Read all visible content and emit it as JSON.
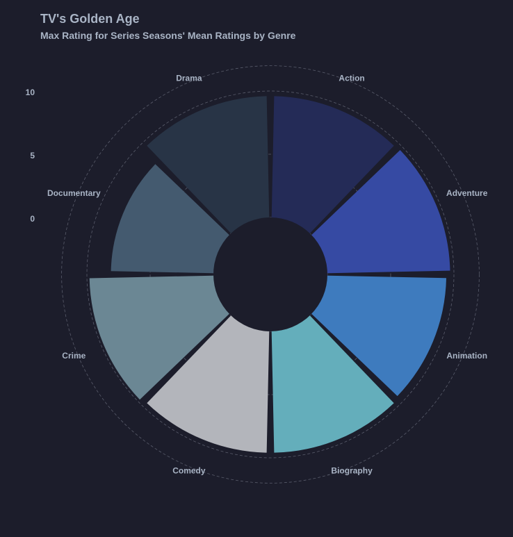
{
  "chart_data": {
    "type": "bar",
    "coordinate_system": "polar",
    "title": "TV's Golden Age",
    "subtitle": "Max Rating for Series Seasons' Mean Ratings by Genre",
    "categories": [
      "Action",
      "Adventure",
      "Animation",
      "Biography",
      "Comedy",
      "Crime",
      "Documentary",
      "Drama"
    ],
    "values": [
      9.6,
      9.7,
      9.4,
      9.6,
      9.6,
      9.8,
      8.1,
      9.6
    ],
    "colors": [
      "#242b57",
      "#364aa3",
      "#3e7bbe",
      "#64aebb",
      "#b3b5bb",
      "#6b8794",
      "#445a6f",
      "#283446"
    ],
    "radial_ticks": [
      0,
      5,
      10
    ],
    "radial_tick_labels": [
      "0",
      "5",
      "10"
    ],
    "ylim": [
      -4,
      12
    ],
    "grid": true
  },
  "style": {
    "background": "#1c1d2b",
    "text_color": "#a9b4c5",
    "grid_color": "#5a5d6c"
  }
}
